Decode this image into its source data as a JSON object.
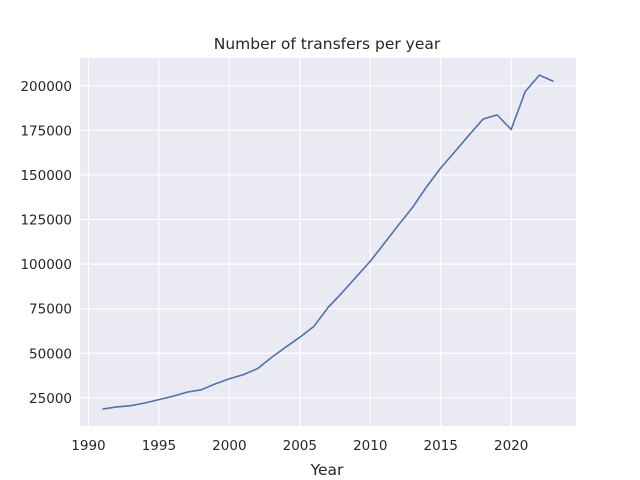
{
  "chart_data": {
    "type": "line",
    "title": "Number of transfers per year",
    "xlabel": "Year",
    "ylabel": "",
    "xlim": [
      1989.4,
      2024.6
    ],
    "ylim": [
      9200,
      215600
    ],
    "grid": true,
    "x_ticks": [
      1990,
      1995,
      2000,
      2005,
      2010,
      2015,
      2020
    ],
    "y_ticks": [
      25000,
      50000,
      75000,
      100000,
      125000,
      150000,
      175000,
      200000
    ],
    "x_tick_labels": [
      "1990",
      "1995",
      "2000",
      "2005",
      "2010",
      "2015",
      "2020"
    ],
    "y_tick_labels": [
      "25000",
      "50000",
      "75000",
      "100000",
      "125000",
      "150000",
      "175000",
      "200000"
    ],
    "colors": {
      "background": "#EAEAF2",
      "grid": "#FFFFFF",
      "line": "#4C72B0"
    },
    "series": [
      {
        "x": [
          1991,
          1992,
          1993,
          1994,
          1995,
          1996,
          1997,
          1998,
          1999,
          2000,
          2001,
          2002,
          2003,
          2004,
          2005,
          2006,
          2007,
          2008,
          2009,
          2010,
          2011,
          2012,
          2013,
          2014,
          2015,
          2016,
          2017,
          2018,
          2019,
          2020,
          2021,
          2022,
          2023
        ],
        "values": [
          18700,
          19900,
          20600,
          22100,
          24000,
          25900,
          28200,
          29500,
          32800,
          35700,
          38000,
          41400,
          47700,
          53400,
          59000,
          65100,
          75600,
          84000,
          92800,
          101600,
          111700,
          121900,
          131800,
          143400,
          153900,
          163000,
          172300,
          181300,
          183700,
          175500,
          196800,
          206000,
          202500
        ]
      }
    ]
  }
}
